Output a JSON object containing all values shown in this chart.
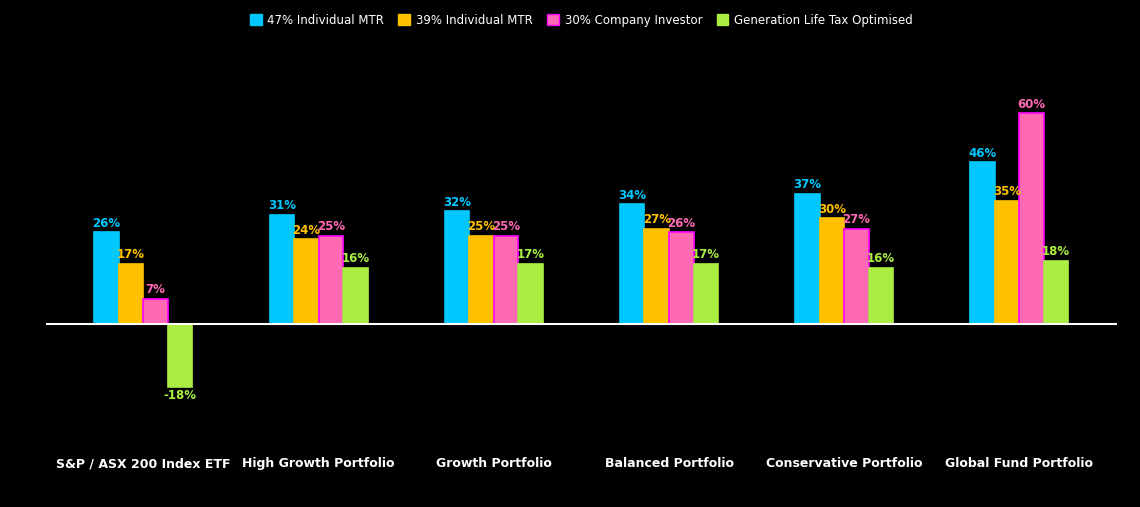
{
  "categories": [
    "S&P / ASX 200 Index ETF",
    "High Growth Portfolio",
    "Growth Portfolio",
    "Balanced Portfolio",
    "Conservative Portfolio",
    "Global Fund Portfolio"
  ],
  "series": [
    {
      "label": "47% Individual MTR",
      "color": "#00C8FF",
      "edgecolor": "#00C8FF",
      "values": [
        26,
        31,
        32,
        34,
        37,
        46
      ]
    },
    {
      "label": "39% Individual MTR",
      "color": "#FFC000",
      "edgecolor": "#FFC000",
      "values": [
        17,
        24,
        25,
        27,
        30,
        35
      ]
    },
    {
      "label": "30% Company Investor",
      "color": "#FF69B4",
      "edgecolor": "#FF00FF",
      "values": [
        7,
        25,
        25,
        26,
        27,
        60
      ]
    },
    {
      "label": "Generation Life Tax Optimised",
      "color": "#AAEE44",
      "edgecolor": "#AAEE44",
      "values": [
        -18,
        16,
        17,
        17,
        16,
        18
      ]
    }
  ],
  "bar_width": 0.14,
  "ylim": [
    -35,
    75
  ],
  "background_color": "#000000",
  "text_color": "#ffffff",
  "label_fontsize": 8.5,
  "tick_fontsize": 9,
  "legend_fontsize": 8.5,
  "axhline_color": "#ffffff",
  "axhline_lw": 1.5
}
